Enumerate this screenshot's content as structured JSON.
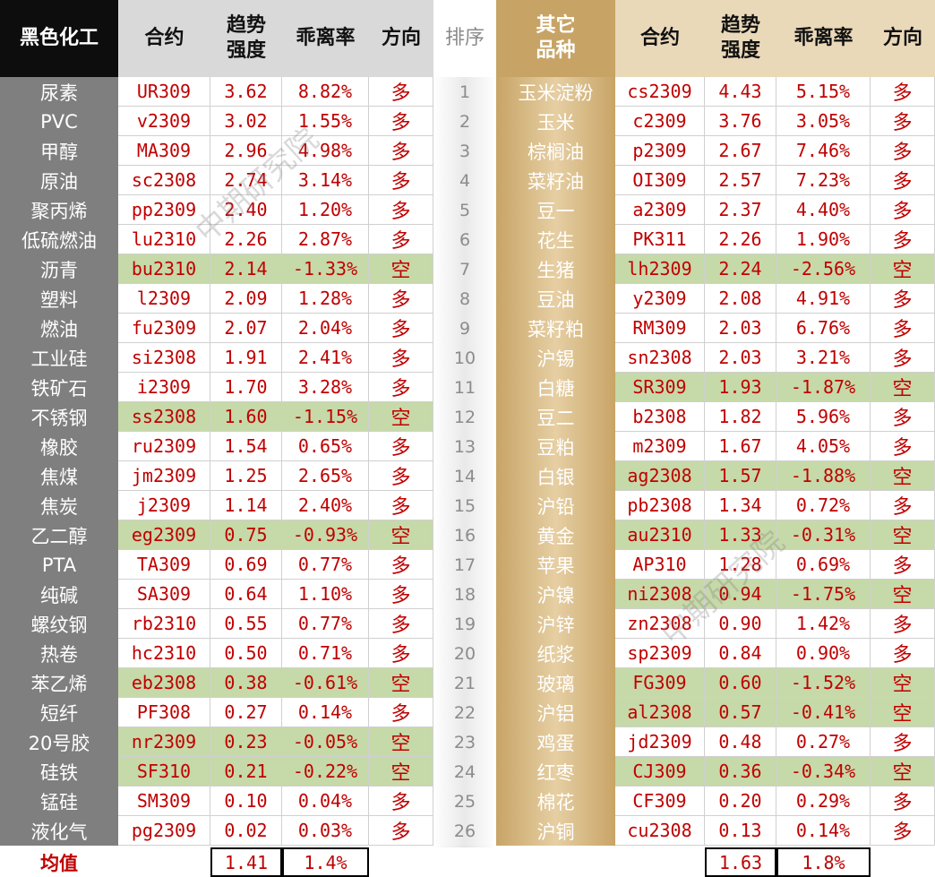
{
  "left": {
    "headers": {
      "category": "黑色化工",
      "contract": "合约",
      "trend": "趋势\n强度",
      "deviation": "乖离率",
      "direction": "方向"
    },
    "rows": [
      {
        "name": "尿素",
        "contract": "UR309",
        "trend": "3.62",
        "dev": "8.82%",
        "dir": "多",
        "short": false
      },
      {
        "name": "PVC",
        "contract": "v2309",
        "trend": "3.02",
        "dev": "1.55%",
        "dir": "多",
        "short": false
      },
      {
        "name": "甲醇",
        "contract": "MA309",
        "trend": "2.96",
        "dev": "4.98%",
        "dir": "多",
        "short": false
      },
      {
        "name": "原油",
        "contract": "sc2308",
        "trend": "2.74",
        "dev": "3.14%",
        "dir": "多",
        "short": false
      },
      {
        "name": "聚丙烯",
        "contract": "pp2309",
        "trend": "2.40",
        "dev": "1.20%",
        "dir": "多",
        "short": false
      },
      {
        "name": "低硫燃油",
        "contract": "lu2310",
        "trend": "2.26",
        "dev": "2.87%",
        "dir": "多",
        "short": false
      },
      {
        "name": "沥青",
        "contract": "bu2310",
        "trend": "2.14",
        "dev": "-1.33%",
        "dir": "空",
        "short": true
      },
      {
        "name": "塑料",
        "contract": "l2309",
        "trend": "2.09",
        "dev": "1.28%",
        "dir": "多",
        "short": false
      },
      {
        "name": "燃油",
        "contract": "fu2309",
        "trend": "2.07",
        "dev": "2.04%",
        "dir": "多",
        "short": false
      },
      {
        "name": "工业硅",
        "contract": "si2308",
        "trend": "1.91",
        "dev": "2.41%",
        "dir": "多",
        "short": false
      },
      {
        "name": "铁矿石",
        "contract": "i2309",
        "trend": "1.70",
        "dev": "3.28%",
        "dir": "多",
        "short": false
      },
      {
        "name": "不锈钢",
        "contract": "ss2308",
        "trend": "1.60",
        "dev": "-1.15%",
        "dir": "空",
        "short": true
      },
      {
        "name": "橡胶",
        "contract": "ru2309",
        "trend": "1.54",
        "dev": "0.65%",
        "dir": "多",
        "short": false
      },
      {
        "name": "焦煤",
        "contract": "jm2309",
        "trend": "1.25",
        "dev": "2.65%",
        "dir": "多",
        "short": false
      },
      {
        "name": "焦炭",
        "contract": "j2309",
        "trend": "1.14",
        "dev": "2.40%",
        "dir": "多",
        "short": false
      },
      {
        "name": "乙二醇",
        "contract": "eg2309",
        "trend": "0.75",
        "dev": "-0.93%",
        "dir": "空",
        "short": true
      },
      {
        "name": "PTA",
        "contract": "TA309",
        "trend": "0.69",
        "dev": "0.77%",
        "dir": "多",
        "short": false
      },
      {
        "name": "纯碱",
        "contract": "SA309",
        "trend": "0.64",
        "dev": "1.10%",
        "dir": "多",
        "short": false
      },
      {
        "name": "螺纹钢",
        "contract": "rb2310",
        "trend": "0.55",
        "dev": "0.77%",
        "dir": "多",
        "short": false
      },
      {
        "name": "热卷",
        "contract": "hc2310",
        "trend": "0.50",
        "dev": "0.71%",
        "dir": "多",
        "short": false
      },
      {
        "name": "苯乙烯",
        "contract": "eb2308",
        "trend": "0.38",
        "dev": "-0.61%",
        "dir": "空",
        "short": true
      },
      {
        "name": "短纤",
        "contract": "PF308",
        "trend": "0.27",
        "dev": "0.14%",
        "dir": "多",
        "short": false
      },
      {
        "name": "20号胶",
        "contract": "nr2309",
        "trend": "0.23",
        "dev": "-0.05%",
        "dir": "空",
        "short": true
      },
      {
        "name": "硅铁",
        "contract": "SF310",
        "trend": "0.21",
        "dev": "-0.22%",
        "dir": "空",
        "short": true
      },
      {
        "name": "锰硅",
        "contract": "SM309",
        "trend": "0.10",
        "dev": "0.04%",
        "dir": "多",
        "short": false
      },
      {
        "name": "液化气",
        "contract": "pg2309",
        "trend": "0.02",
        "dev": "0.03%",
        "dir": "多",
        "short": false
      }
    ],
    "avg_label": "均值",
    "avg_trend": "1.41",
    "avg_dev": "1.4%"
  },
  "rank_header": "排序",
  "ranks": [
    "1",
    "2",
    "3",
    "4",
    "5",
    "6",
    "7",
    "8",
    "9",
    "10",
    "11",
    "12",
    "13",
    "14",
    "15",
    "16",
    "17",
    "18",
    "19",
    "20",
    "21",
    "22",
    "23",
    "24",
    "25",
    "26"
  ],
  "right": {
    "headers": {
      "category": "其它\n品种",
      "contract": "合约",
      "trend": "趋势\n强度",
      "deviation": "乖离率",
      "direction": "方向"
    },
    "rows": [
      {
        "name": "玉米淀粉",
        "contract": "cs2309",
        "trend": "4.43",
        "dev": "5.15%",
        "dir": "多",
        "short": false
      },
      {
        "name": "玉米",
        "contract": "c2309",
        "trend": "3.76",
        "dev": "3.05%",
        "dir": "多",
        "short": false
      },
      {
        "name": "棕榈油",
        "contract": "p2309",
        "trend": "2.67",
        "dev": "7.46%",
        "dir": "多",
        "short": false
      },
      {
        "name": "菜籽油",
        "contract": "OI309",
        "trend": "2.57",
        "dev": "7.23%",
        "dir": "多",
        "short": false
      },
      {
        "name": "豆一",
        "contract": "a2309",
        "trend": "2.37",
        "dev": "4.40%",
        "dir": "多",
        "short": false
      },
      {
        "name": "花生",
        "contract": "PK311",
        "trend": "2.26",
        "dev": "1.90%",
        "dir": "多",
        "short": false
      },
      {
        "name": "生猪",
        "contract": "lh2309",
        "trend": "2.24",
        "dev": "-2.56%",
        "dir": "空",
        "short": true
      },
      {
        "name": "豆油",
        "contract": "y2309",
        "trend": "2.08",
        "dev": "4.91%",
        "dir": "多",
        "short": false
      },
      {
        "name": "菜籽粕",
        "contract": "RM309",
        "trend": "2.03",
        "dev": "6.76%",
        "dir": "多",
        "short": false
      },
      {
        "name": "沪锡",
        "contract": "sn2308",
        "trend": "2.03",
        "dev": "3.21%",
        "dir": "多",
        "short": false
      },
      {
        "name": "白糖",
        "contract": "SR309",
        "trend": "1.93",
        "dev": "-1.87%",
        "dir": "空",
        "short": true
      },
      {
        "name": "豆二",
        "contract": "b2308",
        "trend": "1.82",
        "dev": "5.96%",
        "dir": "多",
        "short": false
      },
      {
        "name": "豆粕",
        "contract": "m2309",
        "trend": "1.67",
        "dev": "4.05%",
        "dir": "多",
        "short": false
      },
      {
        "name": "白银",
        "contract": "ag2308",
        "trend": "1.57",
        "dev": "-1.88%",
        "dir": "空",
        "short": true
      },
      {
        "name": "沪铅",
        "contract": "pb2308",
        "trend": "1.34",
        "dev": "0.72%",
        "dir": "多",
        "short": false
      },
      {
        "name": "黄金",
        "contract": "au2310",
        "trend": "1.33",
        "dev": "-0.31%",
        "dir": "空",
        "short": true
      },
      {
        "name": "苹果",
        "contract": "AP310",
        "trend": "1.28",
        "dev": "0.69%",
        "dir": "多",
        "short": false
      },
      {
        "name": "沪镍",
        "contract": "ni2308",
        "trend": "0.94",
        "dev": "-1.75%",
        "dir": "空",
        "short": true
      },
      {
        "name": "沪锌",
        "contract": "zn2308",
        "trend": "0.90",
        "dev": "1.42%",
        "dir": "多",
        "short": false
      },
      {
        "name": "纸浆",
        "contract": "sp2309",
        "trend": "0.84",
        "dev": "0.90%",
        "dir": "多",
        "short": false
      },
      {
        "name": "玻璃",
        "contract": "FG309",
        "trend": "0.60",
        "dev": "-1.52%",
        "dir": "空",
        "short": true
      },
      {
        "name": "沪铝",
        "contract": "al2308",
        "trend": "0.57",
        "dev": "-0.41%",
        "dir": "空",
        "short": true
      },
      {
        "name": "鸡蛋",
        "contract": "jd2309",
        "trend": "0.48",
        "dev": "0.27%",
        "dir": "多",
        "short": false
      },
      {
        "name": "红枣",
        "contract": "CJ309",
        "trend": "0.36",
        "dev": "-0.34%",
        "dir": "空",
        "short": true
      },
      {
        "name": "棉花",
        "contract": "CF309",
        "trend": "0.20",
        "dev": "0.29%",
        "dir": "多",
        "short": false
      },
      {
        "name": "沪铜",
        "contract": "cu2308",
        "trend": "0.13",
        "dev": "0.14%",
        "dir": "多",
        "short": false
      }
    ],
    "avg_trend": "1.63",
    "avg_dev": "1.8%"
  },
  "colors": {
    "red": "#c00000",
    "short_bg": "#c6d9a8",
    "gold": "#c7a466",
    "grey": "#7f7f7f"
  }
}
